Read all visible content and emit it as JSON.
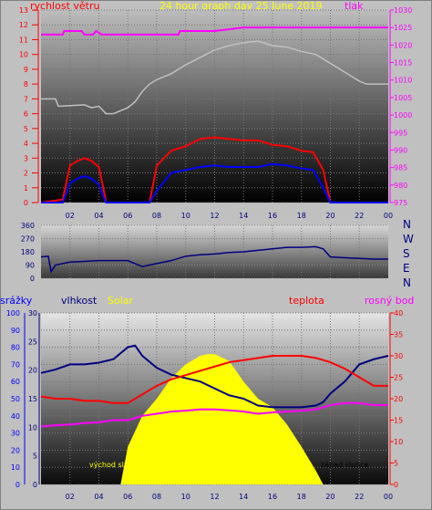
{
  "header": {
    "left_label": "rychlost větru",
    "title": "24 hour graph day   25 June 2019",
    "right_label": "tlak"
  },
  "wind_dir_labels": [
    "N",
    "W",
    "S",
    "E",
    "N"
  ],
  "bottom_labels": {
    "rain": "srážky",
    "humidity": "vlhkost",
    "solar": "Solar",
    "temperature": "teplota",
    "dewpoint": "rosný bod",
    "sunrise": "východ slunce",
    "sunset": "západ slunce"
  },
  "colors": {
    "wind_axis": "#ff0000",
    "pressure_axis": "#ff00ff",
    "gust": "#ff0000",
    "wind": "#0000ff",
    "pressure": "#ff00ff",
    "temperature_line": "#c0c0c0",
    "direction": "#000080",
    "humidity": "#000080",
    "temperature": "#ff0000",
    "dewpoint": "#ff00ff",
    "solar": "#ffff00",
    "rain_axis": "#0000ff",
    "humidity_axis": "#000080",
    "temp_axis": "#ff0000"
  },
  "chart_data": [
    {
      "type": "line",
      "name_key": "wind_pressure",
      "x_ticks": [
        "02",
        "04",
        "06",
        "08",
        "10",
        "12",
        "14",
        "16",
        "18",
        "20",
        "22",
        "00"
      ],
      "xlim": [
        0,
        24
      ],
      "y_left": {
        "ticks": [
          "0",
          "1",
          "2",
          "3",
          "4",
          "5",
          "6",
          "7",
          "8",
          "9",
          "10",
          "11",
          "12",
          "13"
        ],
        "ylim": [
          0,
          13
        ]
      },
      "y_right": {
        "ticks": [
          "975",
          "980",
          "985",
          "990",
          "995",
          "1000",
          "1005",
          "1010",
          "1015",
          "1020",
          "1025",
          "1030"
        ],
        "ylim": [
          975,
          1030
        ]
      },
      "series": [
        {
          "key": "pressure",
          "axis": "right",
          "x": [
            0,
            1.5,
            1.6,
            2.8,
            3,
            3.6,
            3.8,
            4.2,
            4.5,
            9.5,
            9.6,
            12,
            14,
            16,
            18,
            20,
            24
          ],
          "y": [
            1023,
            1023,
            1024,
            1024,
            1023,
            1023,
            1024,
            1023,
            1023,
            1023,
            1024,
            1024,
            1025,
            1025,
            1025,
            1025,
            1025
          ]
        },
        {
          "key": "temperature_line",
          "axis": "left",
          "x": [
            0,
            1,
            1.2,
            3,
            3.5,
            4,
            4.5,
            5,
            6,
            6.5,
            7,
            7.5,
            8,
            8.5,
            9,
            9.5,
            10,
            11,
            12,
            13,
            14,
            15,
            16,
            17,
            18,
            19,
            20,
            21,
            22,
            22.5,
            24
          ],
          "y": [
            7,
            7,
            6.5,
            6.6,
            6.4,
            6.5,
            6,
            6,
            6.4,
            6.8,
            7.5,
            8,
            8.3,
            8.5,
            8.7,
            9,
            9.3,
            9.8,
            10.3,
            10.6,
            10.8,
            10.9,
            10.6,
            10.5,
            10.2,
            10,
            9.4,
            8.8,
            8.2,
            8,
            8
          ]
        },
        {
          "key": "gust",
          "axis": "left",
          "x": [
            0,
            1.5,
            2,
            2.5,
            3,
            3.5,
            4,
            4.3,
            4.5,
            7.5,
            8,
            9,
            10,
            11,
            12,
            13,
            14,
            15,
            16,
            17,
            18,
            18.8,
            19.5,
            20,
            24
          ],
          "y": [
            0,
            0.2,
            2.5,
            2.8,
            3,
            2.8,
            2.4,
            1,
            0,
            0,
            2.5,
            3.5,
            3.8,
            4.3,
            4.4,
            4.3,
            4.2,
            4.2,
            3.9,
            3.8,
            3.5,
            3.4,
            2.2,
            0,
            0
          ]
        },
        {
          "key": "wind",
          "axis": "left",
          "x": [
            0,
            1.5,
            2,
            2.5,
            3,
            3.5,
            4,
            4.3,
            4.5,
            7.5,
            8,
            9,
            10,
            11,
            12,
            13,
            14,
            15,
            16,
            17,
            18,
            18.8,
            19.5,
            20,
            24
          ],
          "y": [
            0,
            0,
            1.3,
            1.6,
            1.8,
            1.6,
            1.2,
            0.4,
            0,
            0,
            0.8,
            2,
            2.2,
            2.4,
            2.5,
            2.4,
            2.4,
            2.4,
            2.6,
            2.5,
            2.3,
            2.2,
            1,
            0,
            0
          ]
        }
      ]
    },
    {
      "type": "line",
      "name_key": "wind_direction",
      "x_ticks": [
        "02",
        "04",
        "06",
        "08",
        "10",
        "12",
        "14",
        "16",
        "18",
        "20",
        "22",
        "00"
      ],
      "xlim": [
        0,
        24
      ],
      "y_ticks": [
        "0",
        "90",
        "180",
        "270",
        "360"
      ],
      "ylim": [
        0,
        360
      ],
      "series": [
        {
          "key": "direction",
          "x": [
            0,
            0.5,
            0.7,
            1,
            2,
            3,
            4,
            5,
            6,
            6.5,
            7,
            8,
            9,
            10,
            11,
            12,
            13,
            14,
            15,
            16,
            17,
            18,
            19,
            19.5,
            20,
            21,
            22,
            23,
            24
          ],
          "y": [
            145,
            150,
            45,
            90,
            110,
            115,
            120,
            120,
            120,
            100,
            80,
            100,
            120,
            150,
            160,
            165,
            175,
            180,
            190,
            200,
            210,
            210,
            215,
            200,
            145,
            140,
            135,
            130,
            130
          ]
        }
      ]
    },
    {
      "type": "line",
      "name_key": "temp_humidity_solar",
      "x_ticks": [
        "02",
        "04",
        "06",
        "08",
        "10",
        "12",
        "14",
        "16",
        "18",
        "20",
        "22",
        "00"
      ],
      "xlim": [
        0,
        24
      ],
      "y_rain": {
        "ticks": [
          "0",
          "10",
          "20",
          "30",
          "40",
          "50",
          "60",
          "70",
          "80",
          "90",
          "100"
        ],
        "ylim": [
          0,
          100
        ]
      },
      "y_rain2": {
        "ticks": [
          "0",
          "5",
          "10",
          "15",
          "20",
          "25",
          "30"
        ],
        "ylim": [
          0,
          30
        ]
      },
      "y_temp": {
        "ticks": [
          "0",
          "5",
          "10",
          "15",
          "20",
          "25",
          "30",
          "35",
          "40"
        ],
        "ylim": [
          0,
          40
        ]
      },
      "series": [
        {
          "key": "solar",
          "axis": "rain",
          "x": [
            5.5,
            6,
            7,
            8,
            9,
            10,
            11,
            11.5,
            12,
            13,
            14,
            14.5,
            15,
            16,
            17,
            18,
            19,
            19.5
          ],
          "y": [
            0,
            22,
            40,
            50,
            62,
            70,
            75,
            76,
            76,
            72,
            60,
            55,
            50,
            45,
            35,
            22,
            8,
            0
          ]
        },
        {
          "key": "humidity",
          "axis": "rain",
          "x": [
            0,
            1,
            2,
            3,
            4,
            5,
            6,
            6.5,
            7,
            8,
            9,
            10,
            11,
            12,
            13,
            14,
            15,
            16,
            17,
            18,
            19,
            19.5,
            20,
            21,
            22,
            23,
            24
          ],
          "y": [
            65,
            67,
            70,
            70,
            71,
            73,
            80,
            81,
            75,
            68,
            64,
            62,
            60,
            56,
            52,
            50,
            46,
            45,
            45,
            45,
            46,
            48,
            53,
            60,
            70,
            73,
            75
          ]
        },
        {
          "key": "temperature",
          "axis": "temp",
          "x": [
            0,
            1,
            2,
            3,
            4,
            5,
            6,
            7,
            8,
            9,
            10,
            11,
            12,
            13,
            14,
            15,
            16,
            17,
            18,
            19,
            20,
            21,
            22,
            23,
            24
          ],
          "y": [
            20.5,
            20,
            20,
            19.5,
            19.5,
            19,
            19,
            21,
            23,
            24.5,
            25.5,
            26.5,
            27.5,
            28.5,
            29,
            29.5,
            30,
            30,
            30,
            29.5,
            28.5,
            27,
            25,
            23,
            23
          ]
        },
        {
          "key": "dewpoint",
          "axis": "temp",
          "x": [
            0,
            1,
            2,
            3,
            4,
            5,
            6,
            7,
            8,
            9,
            10,
            11,
            12,
            13,
            14,
            15,
            16,
            17,
            18,
            19,
            20,
            21,
            22,
            23,
            24
          ],
          "y": [
            13.5,
            13.8,
            14,
            14.3,
            14.5,
            15,
            15,
            16,
            16.5,
            17,
            17.2,
            17.5,
            17.5,
            17.3,
            17,
            16.5,
            16.8,
            17,
            17.2,
            17.5,
            18.5,
            19,
            19,
            18.5,
            18.5
          ]
        }
      ]
    }
  ]
}
